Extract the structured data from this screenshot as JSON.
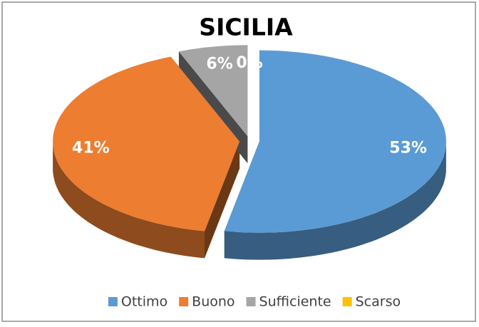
{
  "chart_data": {
    "type": "pie",
    "title": "SICILIA",
    "categories": [
      "Ottimo",
      "Buono",
      "Sufficiente",
      "Scarso"
    ],
    "values": [
      53,
      41,
      6,
      0
    ],
    "value_labels": [
      "53%",
      "41%",
      "6%",
      "0%"
    ],
    "colors": [
      "#5b9bd5",
      "#ed7d31",
      "#a5a5a5",
      "#ffc000"
    ],
    "legend": "bottom"
  }
}
